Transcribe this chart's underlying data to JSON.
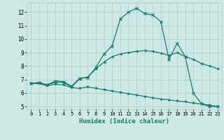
{
  "xlabel": "Humidex (Indice chaleur)",
  "background_color": "#cce9e5",
  "grid_color": "#b0ccc8",
  "line_color": "#1a7a6e",
  "xlim": [
    -0.5,
    23.5
  ],
  "ylim": [
    4.8,
    12.7
  ],
  "xticks": [
    0,
    1,
    2,
    3,
    4,
    5,
    6,
    7,
    8,
    9,
    10,
    11,
    12,
    13,
    14,
    15,
    16,
    17,
    18,
    19,
    20,
    21,
    22,
    23
  ],
  "yticks": [
    5,
    6,
    7,
    8,
    9,
    10,
    11,
    12
  ],
  "line1_x": [
    0,
    1,
    2,
    3,
    4,
    5,
    6,
    7,
    8,
    9,
    10,
    11,
    12,
    13,
    14,
    15,
    16,
    17,
    18,
    19,
    20,
    21,
    22,
    23
  ],
  "line1_y": [
    6.7,
    6.8,
    6.6,
    6.9,
    6.85,
    6.5,
    7.1,
    7.15,
    7.9,
    8.9,
    9.5,
    11.5,
    12.0,
    12.3,
    11.9,
    11.8,
    11.3,
    8.5,
    9.7,
    8.7,
    6.0,
    5.2,
    5.0,
    5.0
  ],
  "line2_x": [
    0,
    1,
    2,
    3,
    4,
    5,
    6,
    7,
    8,
    9,
    10,
    11,
    12,
    13,
    14,
    15,
    16,
    17,
    18,
    19,
    20,
    21,
    22,
    23
  ],
  "line2_y": [
    6.7,
    6.75,
    6.6,
    6.8,
    6.8,
    6.45,
    7.05,
    7.2,
    7.8,
    8.3,
    8.7,
    8.9,
    9.0,
    9.1,
    9.15,
    9.1,
    8.95,
    8.8,
    9.0,
    8.7,
    8.5,
    8.2,
    8.0,
    7.8
  ],
  "line3_x": [
    0,
    1,
    2,
    3,
    4,
    5,
    6,
    7,
    8,
    9,
    10,
    11,
    12,
    13,
    14,
    15,
    16,
    17,
    18,
    19,
    20,
    21,
    22,
    23
  ],
  "line3_y": [
    6.7,
    6.7,
    6.55,
    6.65,
    6.6,
    6.4,
    6.35,
    6.45,
    6.35,
    6.25,
    6.15,
    6.05,
    5.95,
    5.85,
    5.75,
    5.65,
    5.55,
    5.5,
    5.4,
    5.35,
    5.25,
    5.2,
    5.1,
    5.0
  ]
}
